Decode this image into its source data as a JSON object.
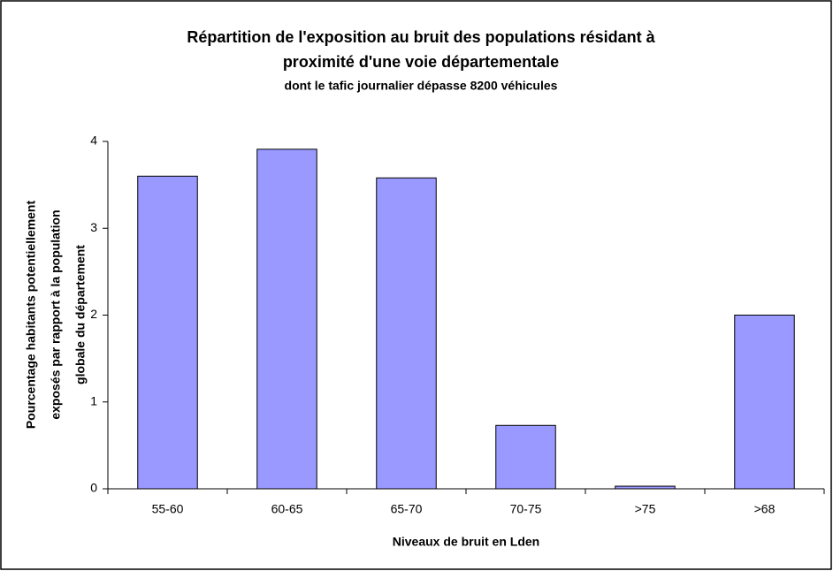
{
  "chart_data": {
    "type": "bar",
    "title": [
      "Répartition de l'exposition au bruit des populations résidant à",
      "proximité d'une voie départementale"
    ],
    "subtitle": "dont le tafic journalier dépasse 8200 véhicules",
    "x_label": "Niveaux de bruit en Lden",
    "y_label": [
      "Pourcentage habitants potentiellement",
      "exposés par rapport à la population",
      "globale du département"
    ],
    "categories": [
      "55-60",
      "60-65",
      "65-70",
      "70-75",
      ">75",
      ">68"
    ],
    "values": [
      3.6,
      3.91,
      3.58,
      0.73,
      0.03,
      2.0
    ],
    "color": "#9999ff",
    "ylim": [
      0,
      4
    ],
    "yticks": [
      0,
      1,
      2,
      3,
      4
    ],
    "grid": false
  }
}
